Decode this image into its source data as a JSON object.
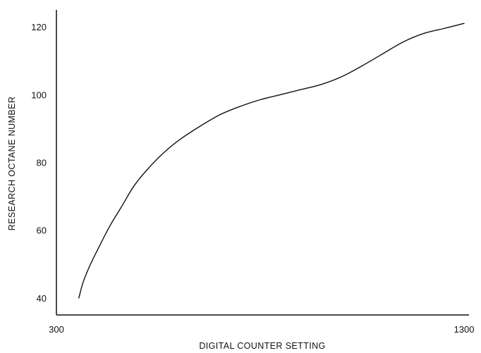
{
  "chart_data": {
    "type": "line",
    "title": "",
    "xlabel": "DIGITAL COUNTER SETTING",
    "ylabel": "RESEARCH OCTANE NUMBER",
    "xlim": [
      300,
      1300
    ],
    "ylim": [
      35,
      125
    ],
    "xticks": [
      300,
      1300
    ],
    "yticks": [
      40,
      60,
      80,
      100,
      120
    ],
    "grid": false,
    "legend": "none",
    "line_color": "#111111",
    "series": [
      {
        "name": "",
        "x": [
          355,
          365,
          380,
          400,
          430,
          460,
          490,
          520,
          560,
          600,
          650,
          700,
          750,
          800,
          850,
          900,
          950,
          1000,
          1050,
          1100,
          1150,
          1200,
          1250,
          1300
        ],
        "y": [
          40,
          44.5,
          49,
          54,
          61,
          67,
          73,
          77.5,
          82.5,
          86.5,
          90.5,
          94,
          96.5,
          98.5,
          100,
          101.5,
          103,
          105.3,
          108.5,
          112,
          115.5,
          118,
          119.5,
          121
        ]
      }
    ]
  }
}
